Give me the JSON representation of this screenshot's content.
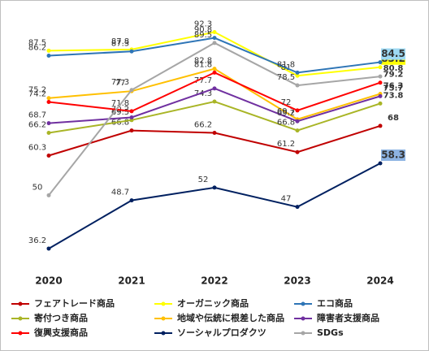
{
  "chart_data": {
    "type": "line",
    "categories": [
      "2020",
      "2021",
      "2022",
      "2023",
      "2024"
    ],
    "ylim": [
      30,
      95
    ],
    "series": [
      {
        "name": "フェアトレード商品",
        "color": "#c00000",
        "values": [
          60.3,
          66.8,
          66.2,
          61.2,
          68
        ]
      },
      {
        "name": "オーガニック商品",
        "color": "#ffff00",
        "values": [
          87.5,
          87.8,
          92.3,
          81,
          83.2
        ]
      },
      {
        "name": "エコ商品",
        "color": "#2e75b6",
        "values": [
          86.2,
          87.3,
          90.8,
          81.8,
          84.5
        ]
      },
      {
        "name": "寄付つき商品",
        "color": "#a9b526",
        "values": [
          66.2,
          69.5,
          74.3,
          66.8,
          73.8
        ]
      },
      {
        "name": "地域や伝統に根差した商品",
        "color": "#ffc000",
        "values": [
          75.2,
          77,
          82.8,
          69.7,
          76.3
        ]
      },
      {
        "name": "障害者支援商品",
        "color": "#7030a0",
        "values": [
          68.7,
          70.2,
          77.7,
          69.2,
          75.7
        ]
      },
      {
        "name": "復興支援商品",
        "color": "#ff0000",
        "values": [
          74.2,
          71.8,
          81.8,
          72,
          79.2
        ]
      },
      {
        "name": "ソーシャルプロダクツ",
        "color": "#002060",
        "values": [
          36.2,
          48.7,
          52,
          47,
          58.3
        ]
      },
      {
        "name": "SDGs",
        "color": "#a6a6a6",
        "values": [
          50,
          77.3,
          89.5,
          78.5,
          80.8
        ]
      }
    ]
  }
}
